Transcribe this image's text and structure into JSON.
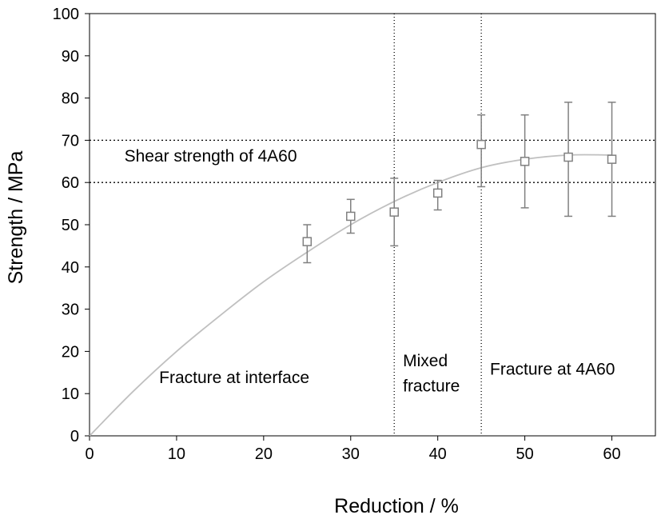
{
  "chart_data": {
    "type": "scatter",
    "xlabel": "Reduction / %",
    "ylabel": "Strength / MPa",
    "xlim": [
      0,
      65
    ],
    "ylim": [
      0,
      100
    ],
    "x_ticks": [
      0,
      10,
      20,
      30,
      40,
      50,
      60
    ],
    "y_ticks": [
      0,
      10,
      20,
      30,
      40,
      50,
      60,
      70,
      80,
      90,
      100
    ],
    "grid": false,
    "colors": {
      "marker": "#808080",
      "curve": "#c0c0c0",
      "guides": "#000000"
    },
    "series": [
      {
        "marker": "open-square",
        "x": [
          25,
          30,
          35,
          40,
          45,
          50,
          55,
          60
        ],
        "y": [
          46,
          52,
          53,
          57.5,
          69,
          65,
          66,
          65.5
        ],
        "err_low": [
          41,
          48,
          45,
          53.5,
          59,
          54,
          52,
          52
        ],
        "err_high": [
          50,
          56,
          61,
          60.5,
          76,
          76,
          79,
          79
        ]
      }
    ],
    "fit_curve": {
      "x": [
        0,
        5,
        10,
        15,
        20,
        25,
        30,
        35,
        40,
        45,
        50,
        55,
        60
      ],
      "y": [
        0,
        10.5,
        20,
        28.5,
        36.5,
        43.5,
        50,
        55.5,
        60,
        63.5,
        65.5,
        66.5,
        66.5
      ]
    },
    "hlines": [
      60,
      70
    ],
    "vlines": [
      35,
      45
    ],
    "annotations": [
      {
        "text": "Shear strength of 4A60",
        "x": 4,
        "y": 65
      },
      {
        "text": "Fracture at interface",
        "x": 8,
        "y": 12.5
      },
      {
        "text": "Mixed",
        "x": 36,
        "y": 16.5
      },
      {
        "text": "fracture",
        "x": 36,
        "y": 10.5
      },
      {
        "text": "Fracture at 4A60",
        "x": 46,
        "y": 14.5
      }
    ]
  }
}
